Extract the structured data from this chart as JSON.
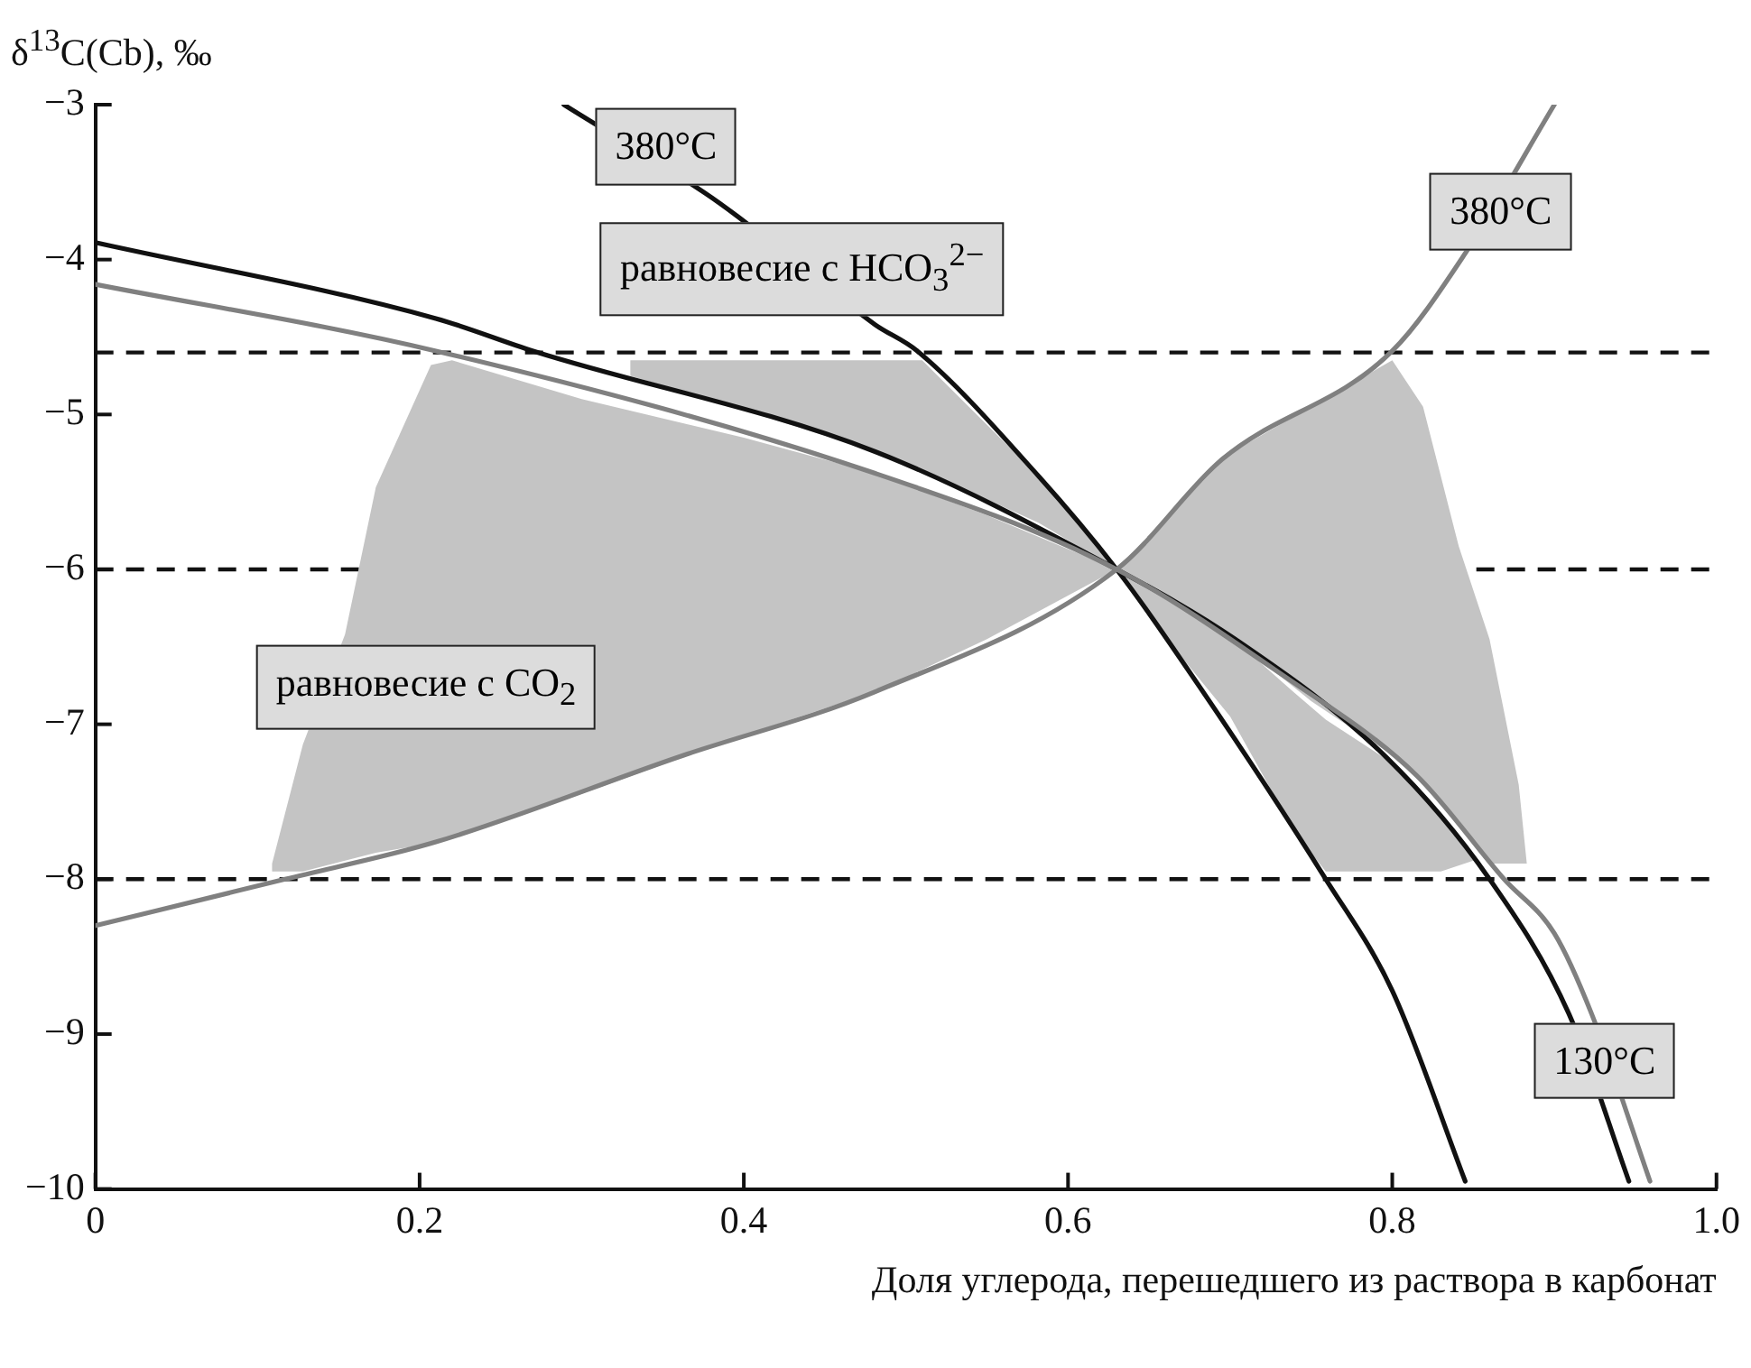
{
  "chart_data": {
    "type": "line",
    "xlabel": "Доля углерода, перешедшего из раствора в карбонат",
    "ylabel": "δ$^{13}$C(Cb), ‰",
    "xlim": [
      0,
      1
    ],
    "ylim": [
      -10,
      -3
    ],
    "xticks": [
      0,
      0.2,
      0.4,
      0.6,
      0.8,
      {
        "value": 1,
        "label": "1.0"
      }
    ],
    "yticks": [
      {
        "value": -3,
        "label": "−3"
      },
      {
        "value": -4,
        "label": "−4"
      },
      {
        "value": -5,
        "label": "−5"
      },
      {
        "value": -6,
        "label": "−6"
      },
      {
        "value": -7,
        "label": "−7"
      },
      {
        "value": -8,
        "label": "−8"
      },
      {
        "value": -9,
        "label": "−9"
      },
      {
        "value": -10,
        "label": "−10"
      }
    ],
    "grid": false,
    "legend": false,
    "marker": "none",
    "line_style": "solid",
    "ref_lines": [
      {
        "axis": "y",
        "value": -4.6,
        "line_style": "dashed",
        "color": "#111111"
      },
      {
        "axis": "y",
        "value": -6,
        "line_style": "dashed",
        "color": "#111111"
      },
      {
        "axis": "y",
        "value": -8,
        "line_style": "dashed",
        "color": "#111111"
      }
    ],
    "series": [
      {
        "type": "area",
        "color": "#c4c4c4",
        "x": [
          0.109,
          0.128,
          0.154,
          0.173,
          0.207,
          0.22,
          0.3,
          0.4,
          0.481,
          0.55,
          0.63,
          0.55,
          0.481,
          0.4,
          0.3,
          0.22,
          0.207,
          0.173,
          0.154,
          0.128,
          0.109
        ],
        "values": [
          -7.9,
          -7.13,
          -6.42,
          -5.47,
          -4.68,
          -4.65,
          -4.9,
          -5.15,
          -5.38,
          -5.65,
          -6,
          -6.45,
          -6.79,
          -7.07,
          -7.45,
          -7.74,
          -7.77,
          -7.83,
          -7.88,
          -7.95,
          -7.95
        ]
      },
      {
        "type": "area",
        "color": "#c4c4c4",
        "x": [
          0.33,
          0.4,
          0.481,
          0.51,
          0.582,
          0.63,
          0.582,
          0.51,
          0.481,
          0.4,
          0.33
        ],
        "values": [
          -4.65,
          -4.65,
          -4.65,
          -4.65,
          -5.4,
          -6,
          -5.7,
          -5.36,
          -5.24,
          -4.97,
          -4.75
        ]
      },
      {
        "type": "area",
        "color": "#c4c4c4",
        "x": [
          0.63,
          0.7,
          0.75,
          0.8,
          0.819,
          0.841,
          0.86,
          0.878,
          0.883,
          0.86,
          0.841,
          0.819,
          0.8,
          0.75,
          0.7
        ],
        "values": [
          -6,
          -5.25,
          -4.95,
          -4.65,
          -4.95,
          -5.85,
          -6.45,
          -7.39,
          -7.9,
          -7.9,
          -7.62,
          -7.38,
          -7.2,
          -6.85,
          -6.43
        ]
      },
      {
        "type": "area",
        "color": "#c4c4c4",
        "x": [
          0.63,
          0.661,
          0.7,
          0.74,
          0.759,
          0.8,
          0.83,
          0.85,
          0.83,
          0.8,
          0.759,
          0.74,
          0.7,
          0.661
        ],
        "values": [
          -6,
          -6.2,
          -6.43,
          -6.8,
          -6.97,
          -7.25,
          -7.6,
          -7.88,
          -7.95,
          -7.95,
          -7.95,
          -7.7,
          -6.95,
          -6.45
        ]
      },
      {
        "type": "line",
        "color": "#111111",
        "x": [
          0.289,
          0.376,
          0.396,
          0.481,
          0.507,
          0.582,
          0.63,
          0.661,
          0.759,
          0.8,
          0.845
        ],
        "values": [
          -3,
          -3.57,
          -3.72,
          -4.42,
          -4.59,
          -5.4,
          -6,
          -6.45,
          -8,
          -8.72,
          -9.95
        ]
      },
      {
        "type": "line",
        "color": "#111111",
        "x": [
          0,
          0.21,
          0.27,
          0.481,
          0.63,
          0.703,
          0.796,
          0.86,
          0.909,
          0.946
        ],
        "values": [
          -3.89,
          -4.38,
          -4.59,
          -5.24,
          -6,
          -6.45,
          -7.21,
          -8,
          -8.87,
          -9.95
        ]
      },
      {
        "type": "line",
        "color": "#808080",
        "x": [
          0,
          0.21,
          0.481,
          0.63,
          0.732,
          0.815,
          0.869,
          0.9,
          0.923,
          0.959
        ],
        "values": [
          -4.16,
          -4.59,
          -5.38,
          -6,
          -6.68,
          -7.33,
          -8,
          -8.35,
          -8.87,
          -9.95
        ]
      },
      {
        "type": "line",
        "color": "#808080",
        "x": [
          0,
          0.117,
          0.21,
          0.36,
          0.481,
          0.63,
          0.695,
          0.8,
          0.845,
          0.9
        ],
        "values": [
          -8.3,
          -8,
          -7.76,
          -7.21,
          -6.79,
          -6,
          -5.29,
          -4.59,
          -3.96,
          -3
        ]
      }
    ],
    "annotations": [
      "380°C",
      {
        "text": "равновесие с HCO$_{3}$$^{2−}$",
        "x": 0.436,
        "y": -4.06
      },
      {
        "text": "380°C",
        "x": 0.867,
        "y": -3.69
      },
      "равновесие с CO$_{2}$",
      {
        "text": "130°C",
        "x": 0.931,
        "y": -9.17
      }
    ]
  }
}
